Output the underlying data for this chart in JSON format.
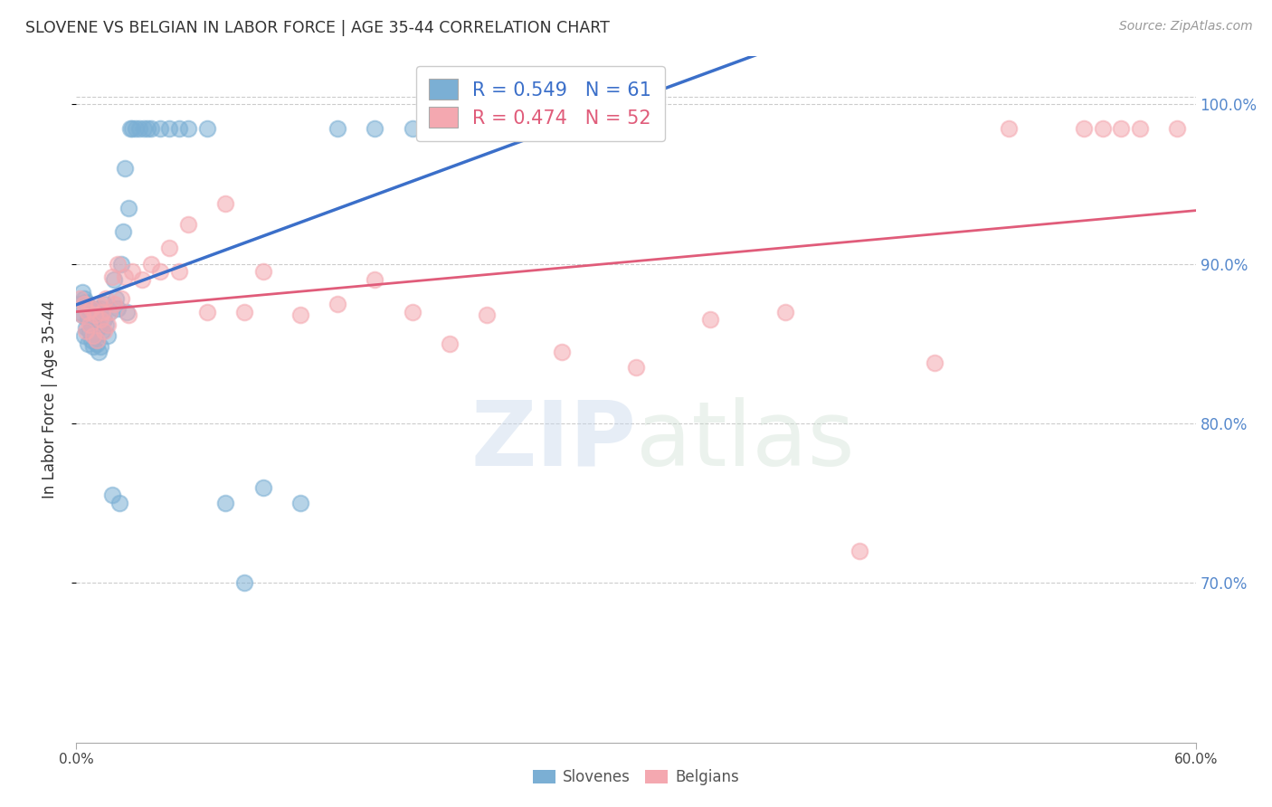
{
  "title": "SLOVENE VS BELGIAN IN LABOR FORCE | AGE 35-44 CORRELATION CHART",
  "source": "Source: ZipAtlas.com",
  "ylabel": "In Labor Force | Age 35-44",
  "xlim": [
    0.0,
    0.6
  ],
  "ylim": [
    0.6,
    1.03
  ],
  "xticks": [
    0.0,
    0.6
  ],
  "yticks": [
    0.7,
    0.8,
    0.9,
    1.0
  ],
  "ytick_labels": [
    "70.0%",
    "80.0%",
    "90.0%",
    "100.0%"
  ],
  "xtick_labels": [
    "0.0%",
    "60.0%"
  ],
  "slovene_color": "#7BAFD4",
  "belgian_color": "#F4A8B0",
  "slovene_line_color": "#3B6FC9",
  "belgian_line_color": "#E05C7A",
  "R_slovene": 0.549,
  "N_slovene": 61,
  "R_belgian": 0.474,
  "N_belgian": 52,
  "watermark_zip": "ZIP",
  "watermark_atlas": "atlas",
  "slovene_x": [
    0.001,
    0.002,
    0.003,
    0.003,
    0.004,
    0.004,
    0.005,
    0.005,
    0.006,
    0.006,
    0.007,
    0.007,
    0.008,
    0.008,
    0.009,
    0.009,
    0.01,
    0.01,
    0.011,
    0.011,
    0.012,
    0.012,
    0.013,
    0.013,
    0.014,
    0.015,
    0.015,
    0.016,
    0.017,
    0.018,
    0.019,
    0.02,
    0.021,
    0.022,
    0.023,
    0.024,
    0.025,
    0.026,
    0.027,
    0.028,
    0.029,
    0.03,
    0.032,
    0.034,
    0.036,
    0.038,
    0.04,
    0.045,
    0.05,
    0.055,
    0.06,
    0.07,
    0.08,
    0.09,
    0.1,
    0.12,
    0.14,
    0.16,
    0.18,
    0.2,
    0.22
  ],
  "slovene_y": [
    0.87,
    0.875,
    0.882,
    0.868,
    0.878,
    0.855,
    0.876,
    0.86,
    0.865,
    0.85,
    0.872,
    0.858,
    0.87,
    0.852,
    0.865,
    0.848,
    0.872,
    0.855,
    0.868,
    0.85,
    0.86,
    0.845,
    0.872,
    0.848,
    0.858,
    0.875,
    0.865,
    0.862,
    0.855,
    0.87,
    0.755,
    0.89,
    0.878,
    0.872,
    0.75,
    0.9,
    0.92,
    0.96,
    0.87,
    0.935,
    0.985,
    0.985,
    0.985,
    0.985,
    0.985,
    0.985,
    0.985,
    0.985,
    0.985,
    0.985,
    0.985,
    0.985,
    0.75,
    0.7,
    0.76,
    0.75,
    0.985,
    0.985,
    0.985,
    0.985,
    0.985
  ],
  "belgian_x": [
    0.002,
    0.003,
    0.004,
    0.005,
    0.006,
    0.007,
    0.008,
    0.009,
    0.01,
    0.011,
    0.012,
    0.013,
    0.014,
    0.015,
    0.016,
    0.017,
    0.018,
    0.019,
    0.02,
    0.022,
    0.024,
    0.026,
    0.028,
    0.03,
    0.035,
    0.04,
    0.045,
    0.05,
    0.055,
    0.06,
    0.07,
    0.08,
    0.09,
    0.1,
    0.12,
    0.14,
    0.16,
    0.18,
    0.2,
    0.22,
    0.26,
    0.3,
    0.34,
    0.38,
    0.42,
    0.46,
    0.5,
    0.54,
    0.57,
    0.59,
    0.55,
    0.56
  ],
  "belgian_y": [
    0.878,
    0.868,
    0.875,
    0.858,
    0.87,
    0.862,
    0.872,
    0.855,
    0.868,
    0.852,
    0.875,
    0.865,
    0.87,
    0.858,
    0.878,
    0.862,
    0.87,
    0.892,
    0.875,
    0.9,
    0.878,
    0.892,
    0.868,
    0.895,
    0.89,
    0.9,
    0.895,
    0.91,
    0.895,
    0.925,
    0.87,
    0.938,
    0.87,
    0.895,
    0.868,
    0.875,
    0.89,
    0.87,
    0.85,
    0.868,
    0.845,
    0.835,
    0.865,
    0.87,
    0.72,
    0.838,
    0.985,
    0.985,
    0.985,
    0.985,
    0.985,
    0.985
  ]
}
